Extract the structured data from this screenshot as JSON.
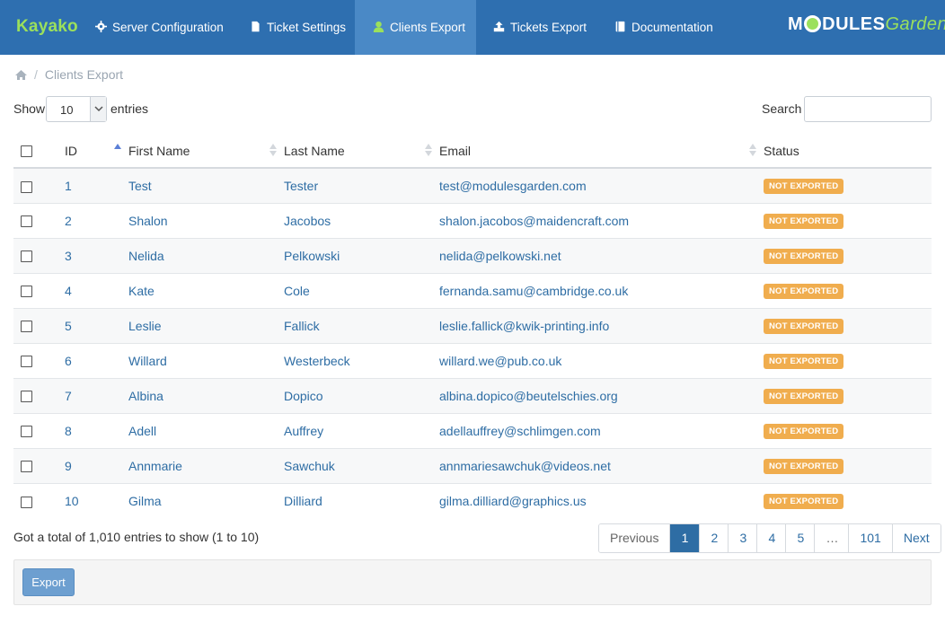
{
  "nav": {
    "brand": "Kayako",
    "items": [
      {
        "label": "Server Configuration",
        "icon": "gear-icon"
      },
      {
        "label": "Ticket Settings",
        "icon": "file-icon"
      },
      {
        "label": "Clients Export",
        "icon": "user-icon",
        "active": true
      },
      {
        "label": "Tickets Export",
        "icon": "export-icon"
      },
      {
        "label": "Documentation",
        "icon": "book-icon"
      }
    ],
    "logo": {
      "part1": "M",
      "part2": "DULES",
      "part3": "Garden"
    }
  },
  "breadcrumb": {
    "home_icon": "home-icon",
    "current": "Clients Export"
  },
  "controls": {
    "show_label": "Show",
    "page_size": "10",
    "entries_label": "entries",
    "search_label": "Search",
    "search_value": ""
  },
  "table": {
    "columns": [
      "ID",
      "First Name",
      "Last Name",
      "Email",
      "Status"
    ],
    "rows": [
      {
        "id": "1",
        "first": "Test",
        "last": "Tester",
        "email": "test@modulesgarden.com",
        "status": "NOT EXPORTED"
      },
      {
        "id": "2",
        "first": "Shalon",
        "last": "Jacobos",
        "email": "shalon.jacobos@maidencraft.com",
        "status": "NOT EXPORTED"
      },
      {
        "id": "3",
        "first": "Nelida",
        "last": "Pelkowski",
        "email": "nelida@pelkowski.net",
        "status": "NOT EXPORTED"
      },
      {
        "id": "4",
        "first": "Kate",
        "last": "Cole",
        "email": "fernanda.samu@cambridge.co.uk",
        "status": "NOT EXPORTED"
      },
      {
        "id": "5",
        "first": "Leslie",
        "last": "Fallick",
        "email": "leslie.fallick@kwik-printing.info",
        "status": "NOT EXPORTED"
      },
      {
        "id": "6",
        "first": "Willard",
        "last": "Westerbeck",
        "email": "willard.we@pub.co.uk",
        "status": "NOT EXPORTED"
      },
      {
        "id": "7",
        "first": "Albina",
        "last": "Dopico",
        "email": "albina.dopico@beutelschies.org",
        "status": "NOT EXPORTED"
      },
      {
        "id": "8",
        "first": "Adell",
        "last": "Auffrey",
        "email": "adellauffrey@schlimgen.com",
        "status": "NOT EXPORTED"
      },
      {
        "id": "9",
        "first": "Annmarie",
        "last": "Sawchuk",
        "email": "annmariesawchuk@videos.net",
        "status": "NOT EXPORTED"
      },
      {
        "id": "10",
        "first": "Gilma",
        "last": "Dilliard",
        "email": "gilma.dilliard@graphics.us",
        "status": "NOT EXPORTED"
      }
    ]
  },
  "footer": {
    "total_text": "Got a total of 1,010 entries to show (1 to 10)",
    "pagination": [
      "Previous",
      "1",
      "2",
      "3",
      "4",
      "5",
      "…",
      "101",
      "Next"
    ],
    "current_page": "1",
    "export_label": "Export"
  },
  "colors": {
    "nav_bg": "#2e6fb0",
    "nav_active": "#4a89c6",
    "brand": "#9be05c",
    "badge": "#f0ad4e",
    "link": "#2e6da4"
  }
}
